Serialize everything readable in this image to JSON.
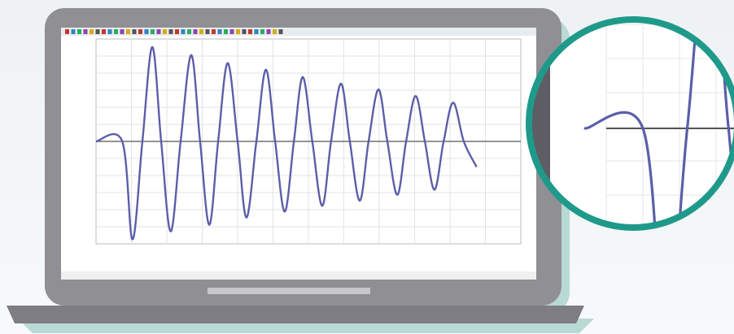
{
  "chart_data": {
    "type": "line",
    "x": [
      0,
      7.4,
      10.3,
      13.1,
      15.9,
      18.4,
      21.1,
      23.9,
      26.9,
      29.4,
      32.0,
      34.5,
      37.2,
      40.0,
      42.5,
      45.3,
      48.0,
      50.6,
      53.3,
      55.9,
      58.4,
      61.1,
      63.9,
      66.4,
      69.2,
      71.7,
      74.5,
      77.0,
      79.8,
      82.3,
      85.1,
      87.6,
      90.3,
      92.9,
      95.6,
      98.2,
      100.9,
      103.9,
      107.4
    ],
    "series": [
      {
        "color": "#5b5ea8",
        "values": [
          0,
          0,
          -1.34,
          0,
          1.29,
          0,
          -1.23,
          0,
          1.18,
          0,
          -1.14,
          0,
          1.07,
          0,
          -1.04,
          0,
          0.98,
          0,
          -0.96,
          0,
          0.88,
          0,
          -0.88,
          0,
          0.79,
          0,
          -0.81,
          0,
          0.71,
          0,
          -0.73,
          0,
          0.62,
          0,
          -0.66,
          0,
          0.53,
          0,
          -0.34
        ]
      }
    ],
    "xlim": [
      0,
      120
    ],
    "ylim": [
      -1.4,
      1.4
    ]
  }
}
